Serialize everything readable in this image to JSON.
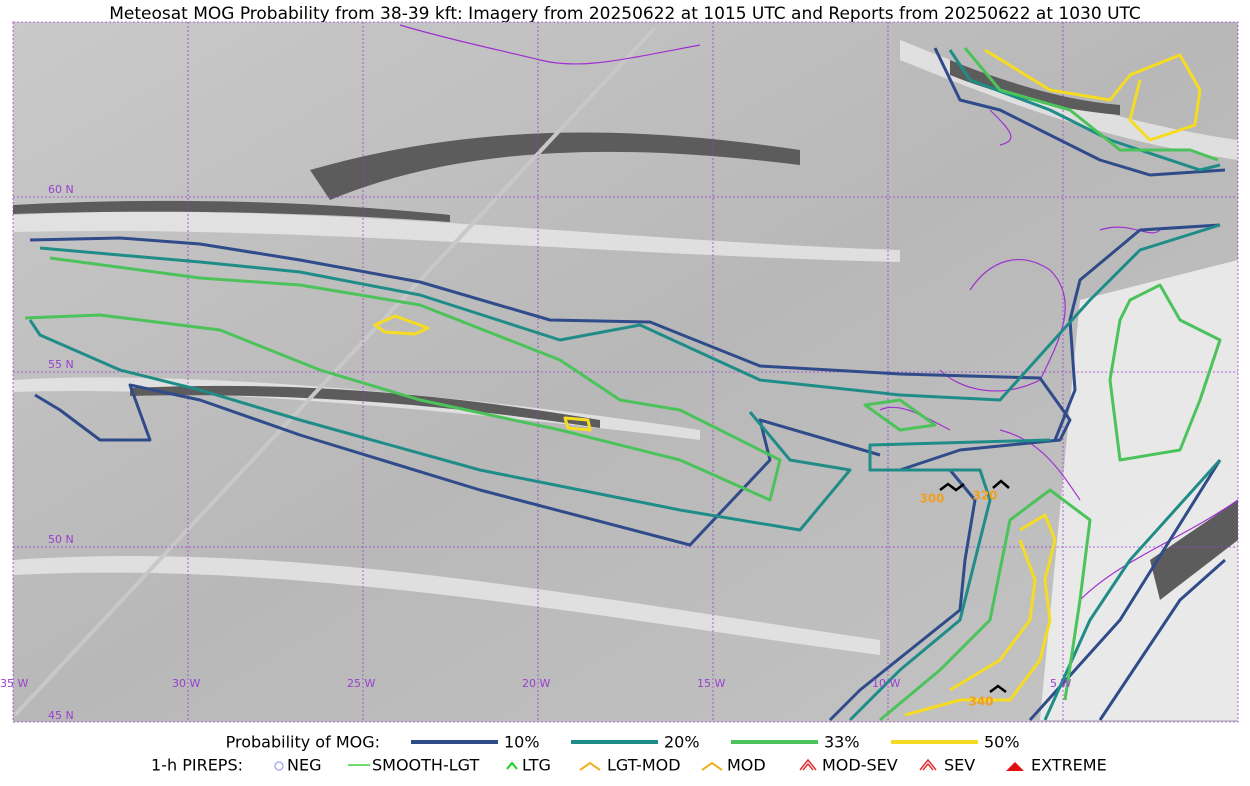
{
  "header": {
    "title": "Meteosat MOG Probability from 38-39 kft: Imagery from 20250622 at 1015 UTC and Reports from 20250622 at 1030 UTC"
  },
  "map": {
    "lat_labels": [
      "60 N",
      "55 N",
      "50 N",
      "45 N"
    ],
    "lon_labels": [
      "35 W",
      "30 W",
      "25 W",
      "20 W",
      "15 W",
      "10 W",
      "5 W"
    ],
    "report_labels": [
      "300",
      "320",
      "340"
    ]
  },
  "legend": {
    "probability_title": "Probability of MOG:",
    "probability": [
      {
        "label": "10%",
        "color": "#2f4b8a"
      },
      {
        "label": "20%",
        "color": "#1f8c88"
      },
      {
        "label": "33%",
        "color": "#4cc35a"
      },
      {
        "label": "50%",
        "color": "#f5dc22"
      }
    ],
    "pireps_title": "1-h PIREPS:",
    "pireps": [
      "NEG",
      "SMOOTH-LGT",
      "LTG",
      "LGT-MOD",
      "MOD",
      "MOD-SEV",
      "SEV",
      "EXTREME"
    ]
  }
}
